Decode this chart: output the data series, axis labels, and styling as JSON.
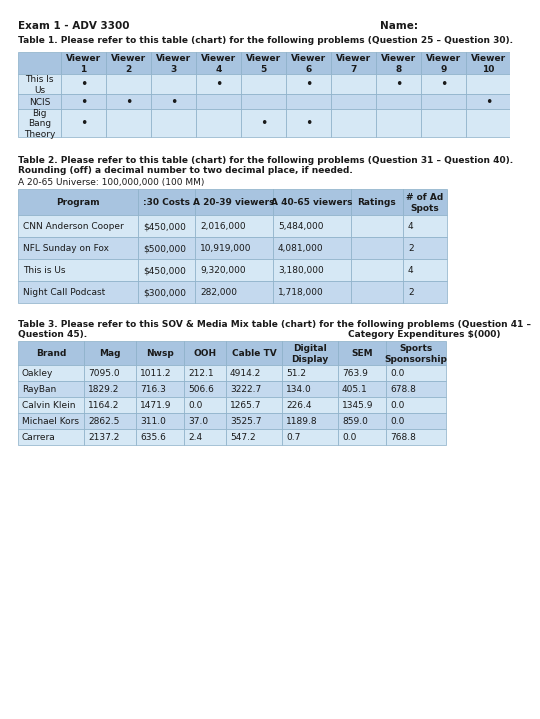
{
  "header_text": "Exam 1 - ADV 3300",
  "name_text": "Name:",
  "table1_title": "Table 1. Please refer to this table (chart) for the following problems (Question 25 – Question 30).",
  "table1_col_headers": [
    "",
    "Viewer\n1",
    "Viewer\n2",
    "Viewer\n3",
    "Viewer\n4",
    "Viewer\n5",
    "Viewer\n6",
    "Viewer\n7",
    "Viewer\n8",
    "Viewer\n9",
    "Viewer\n10"
  ],
  "table1_rows": [
    [
      "This Is\nUs",
      1,
      0,
      0,
      1,
      0,
      1,
      0,
      1,
      1,
      0
    ],
    [
      "NCIS",
      1,
      1,
      1,
      0,
      0,
      0,
      0,
      0,
      0,
      1
    ],
    [
      "Big\nBang\nTheory",
      1,
      0,
      0,
      0,
      1,
      1,
      0,
      0,
      0,
      0
    ]
  ],
  "table2_title_line1": "Table 2. Please refer to this table (chart) for the following problems (Question 31 – Question 40).",
  "table2_title_line2": "Rounding (off) a decimal number to two decimal place, if needed.",
  "table2_subtitle": "A 20-65 Universe: 100,000,000 (100 MM)",
  "table2_col_headers": [
    "Program",
    ":30 Costs",
    "A 20-39 viewers",
    "A 40-65 viewers",
    "Ratings",
    "# of Ad\nSpots"
  ],
  "table2_rows": [
    [
      "CNN Anderson Cooper",
      "$450,000",
      "2,016,000",
      "5,484,000",
      "",
      "4"
    ],
    [
      "NFL Sunday on Fox",
      "$500,000",
      "10,919,000",
      "4,081,000",
      "",
      "2"
    ],
    [
      "This is Us",
      "$450,000",
      "9,320,000",
      "3,180,000",
      "",
      "4"
    ],
    [
      "Night Call Podcast",
      "$300,000",
      "282,000",
      "1,718,000",
      "",
      "2"
    ]
  ],
  "table3_title_line1": "Table 3. Please refer to this SOV & Media Mix table (chart) for the following problems (Question 41 –",
  "table3_title_line2_left": "Question 45).",
  "table3_title_line2_right": "Category Expenditures $(000)",
  "table3_col_headers": [
    "Brand",
    "Mag",
    "Nwsp",
    "OOH",
    "Cable TV",
    "Digital\nDisplay",
    "SEM",
    "Sports\nSponsorship"
  ],
  "table3_rows": [
    [
      "Oakley",
      "7095.0",
      "1011.2",
      "212.1",
      "4914.2",
      "51.2",
      "763.9",
      "0.0"
    ],
    [
      "RayBan",
      "1829.2",
      "716.3",
      "506.6",
      "3222.7",
      "134.0",
      "405.1",
      "678.8"
    ],
    [
      "Calvin Klein",
      "1164.2",
      "1471.9",
      "0.0",
      "1265.7",
      "226.4",
      "1345.9",
      "0.0"
    ],
    [
      "Michael Kors",
      "2862.5",
      "311.0",
      "37.0",
      "3525.7",
      "1189.8",
      "859.0",
      "0.0"
    ],
    [
      "Carrera",
      "2137.2",
      "635.6",
      "2.4",
      "547.2",
      "0.7",
      "0.0",
      "768.8"
    ]
  ],
  "header_bg": "#a8c4e0",
  "row_bg_light": "#d6e8f5",
  "row_bg_dark": "#c4d9ee",
  "border_color": "#8bafc8"
}
